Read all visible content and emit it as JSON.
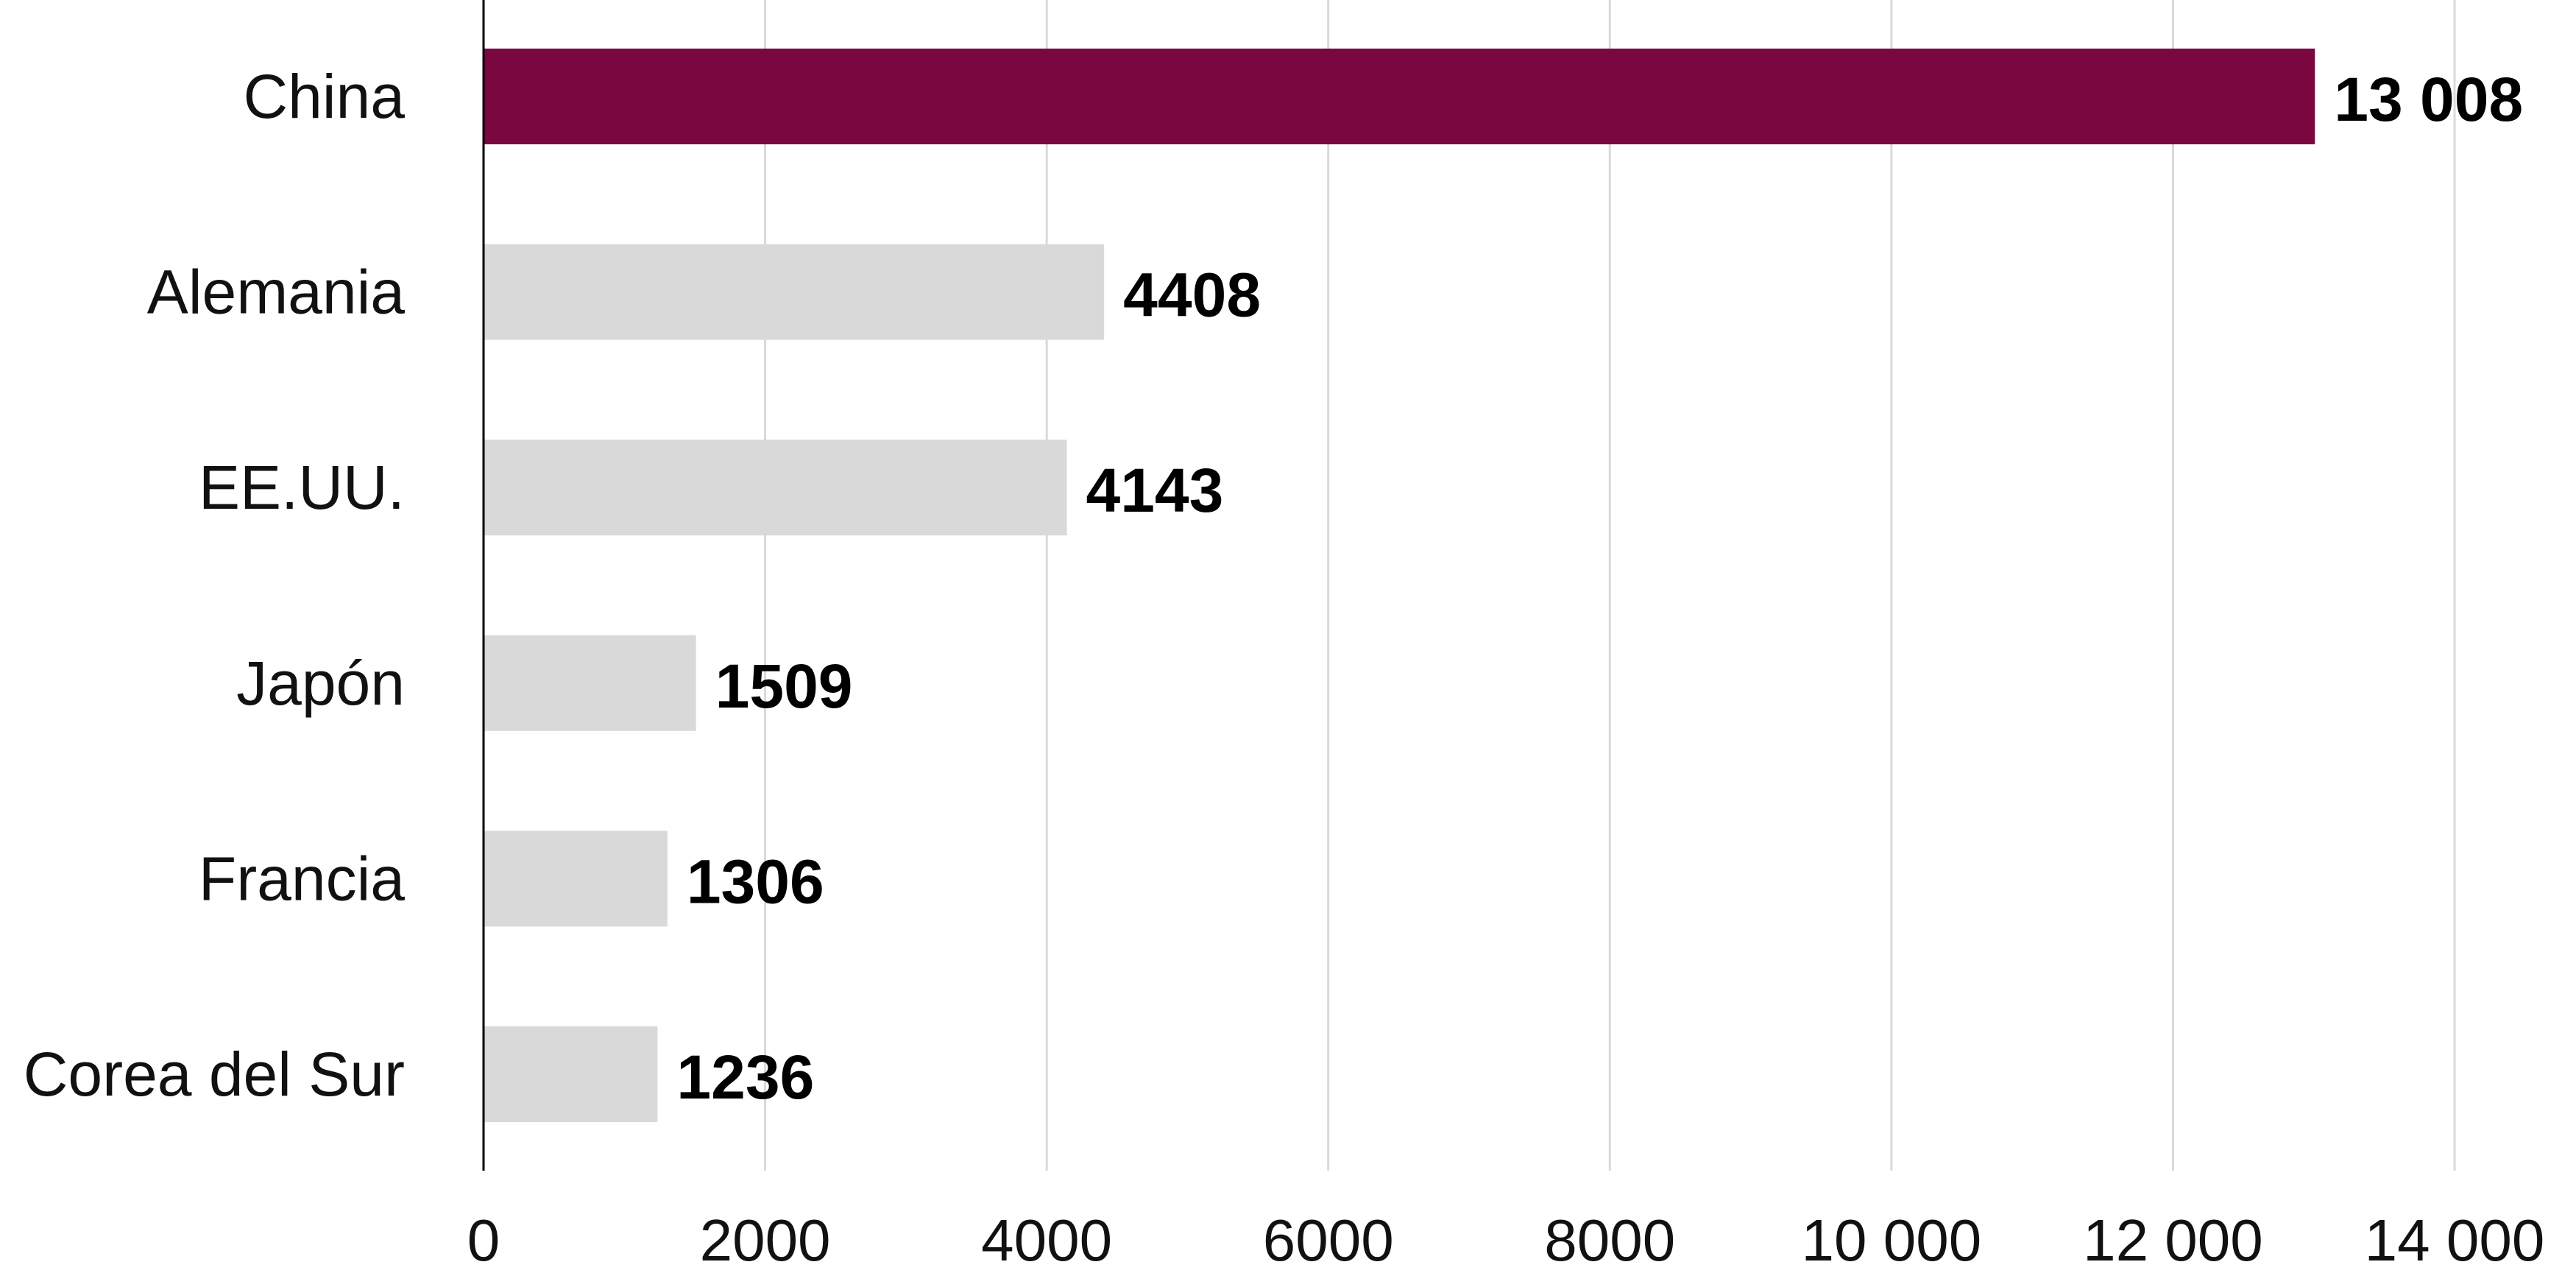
{
  "chart_data": {
    "type": "bar",
    "orientation": "horizontal",
    "categories": [
      "China",
      "Alemania",
      "EE.UU.",
      "Japón",
      "Francia",
      "Corea del Sur"
    ],
    "values": [
      13008,
      4408,
      4143,
      1509,
      1306,
      1236
    ],
    "value_labels": [
      "13 008",
      "4408",
      "4143",
      "1509",
      "1306",
      "1236"
    ],
    "xlim": [
      0,
      14000
    ],
    "x_ticks": [
      0,
      2000,
      4000,
      6000,
      8000,
      10000,
      12000,
      14000
    ],
    "x_tick_labels": [
      "0",
      "2000",
      "4000",
      "6000",
      "8000",
      "10 000",
      "12 000",
      "14 000"
    ],
    "title": "",
    "xlabel": "",
    "ylabel": "",
    "grid": "vertical",
    "legend": "none",
    "highlight_index": 0,
    "colors": {
      "highlight": "#7a073f",
      "bar": "#d9d9d9",
      "grid": "#d9d9d9",
      "axis": "#000000"
    }
  }
}
